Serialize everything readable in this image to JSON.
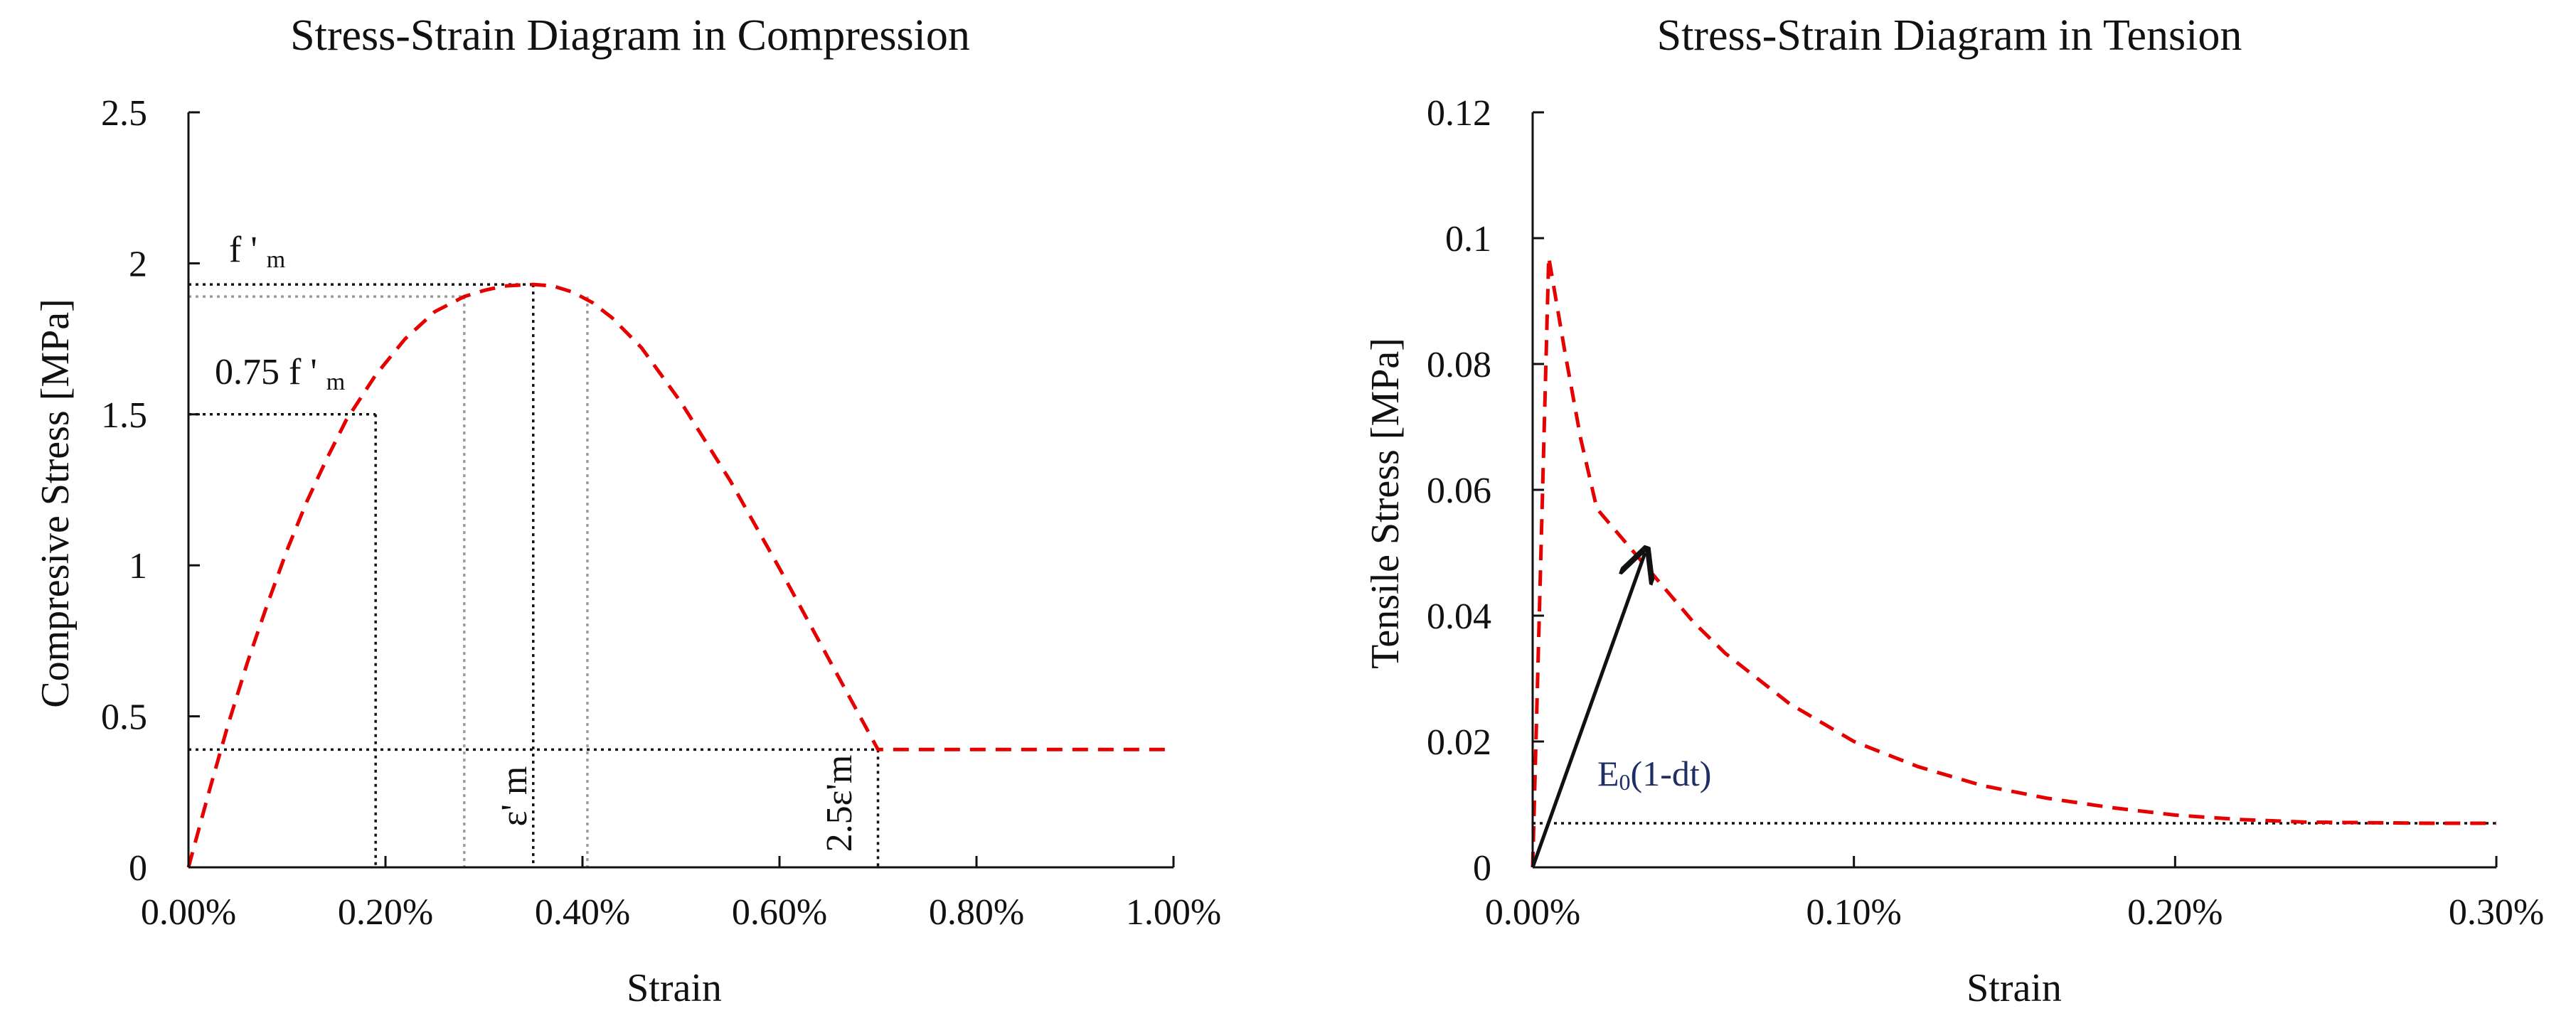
{
  "chart_data": [
    {
      "type": "line",
      "title": "Stress-Strain Diagram in Compression",
      "xlabel": "Strain",
      "ylabel": "Compresive  Stress  [MPa]",
      "xlim": [
        0,
        1.0
      ],
      "ylim": [
        0,
        2.5
      ],
      "x_unit": "%",
      "xticks": [
        0,
        0.2,
        0.4,
        0.6,
        0.8,
        1.0
      ],
      "xtick_labels": [
        "0.00%",
        "0.20%",
        "0.40%",
        "0.60%",
        "0.80%",
        "1.00%"
      ],
      "yticks": [
        0,
        0.5,
        1,
        1.5,
        2,
        2.5
      ],
      "ytick_labels": [
        "0",
        "0.5",
        "1",
        "1.5",
        "2",
        "2.5"
      ],
      "series": [
        {
          "name": "Compression curve",
          "color": "#e60000",
          "x": [
            0,
            0.02,
            0.04,
            0.06,
            0.08,
            0.1,
            0.12,
            0.14,
            0.16,
            0.19,
            0.22,
            0.25,
            0.28,
            0.3,
            0.32,
            0.35,
            0.37,
            0.39,
            0.41,
            0.43,
            0.46,
            0.5,
            0.55,
            0.6,
            0.65,
            0.7,
            0.75,
            0.8,
            0.9,
            1.0
          ],
          "y": [
            0,
            0.24,
            0.47,
            0.68,
            0.87,
            1.05,
            1.21,
            1.35,
            1.48,
            1.63,
            1.75,
            1.84,
            1.89,
            1.91,
            1.925,
            1.93,
            1.925,
            1.905,
            1.87,
            1.82,
            1.72,
            1.54,
            1.28,
            0.99,
            0.69,
            0.39,
            0.39,
            0.39,
            0.39,
            0.39
          ]
        }
      ],
      "guides": {
        "fm": 1.93,
        "fm_lower": 1.89,
        "stress_075fm": 1.5,
        "stress_residual": 0.39,
        "strain_075": 0.19,
        "strain_lower_grey": 0.28,
        "strain_peak": 0.35,
        "strain_upper_grey": 0.405,
        "strain_25em": 0.7
      },
      "annotations": {
        "fm_main": "f ' ",
        "fm_sub": "m",
        "fm075_main": "0.75 f ' ",
        "fm075_sub": "m",
        "em": "ε' m",
        "em25": "2.5ε'm"
      }
    },
    {
      "type": "line",
      "title": "Stress-Strain Diagram in Tension",
      "xlabel": "Strain",
      "ylabel": "Tensile  Stress  [MPa]",
      "xlim": [
        0,
        0.3
      ],
      "ylim": [
        0,
        0.12
      ],
      "x_unit": "%",
      "xticks": [
        0,
        0.1,
        0.2,
        0.3
      ],
      "xtick_labels": [
        "0.00%",
        "0.10%",
        "0.20%",
        "0.30%"
      ],
      "yticks": [
        0,
        0.02,
        0.04,
        0.06,
        0.08,
        0.1,
        0.12
      ],
      "ytick_labels": [
        "0",
        "0.02",
        "0.04",
        "0.06",
        "0.08",
        "0.1",
        "0.12"
      ],
      "series": [
        {
          "name": "Tension curve",
          "color": "#e60000",
          "x": [
            0,
            0.005,
            0.01,
            0.015,
            0.02,
            0.03,
            0.04,
            0.05,
            0.06,
            0.07,
            0.08,
            0.1,
            0.12,
            0.14,
            0.16,
            0.18,
            0.2,
            0.22,
            0.24,
            0.26,
            0.28,
            0.3
          ],
          "y": [
            0,
            0.097,
            0.082,
            0.068,
            0.057,
            0.051,
            0.045,
            0.039,
            0.034,
            0.03,
            0.026,
            0.02,
            0.016,
            0.013,
            0.011,
            0.0095,
            0.0083,
            0.0076,
            0.0072,
            0.0071,
            0.007,
            0.007
          ]
        }
      ],
      "guides": {
        "residual_stress": 0.007,
        "arrow_from": [
          0,
          0
        ],
        "arrow_to": [
          0.035,
          0.05
        ]
      },
      "annotations": {
        "stiffness_main": "E",
        "stiffness_sub": "0",
        "stiffness_rest": "(1-dt)"
      }
    }
  ]
}
